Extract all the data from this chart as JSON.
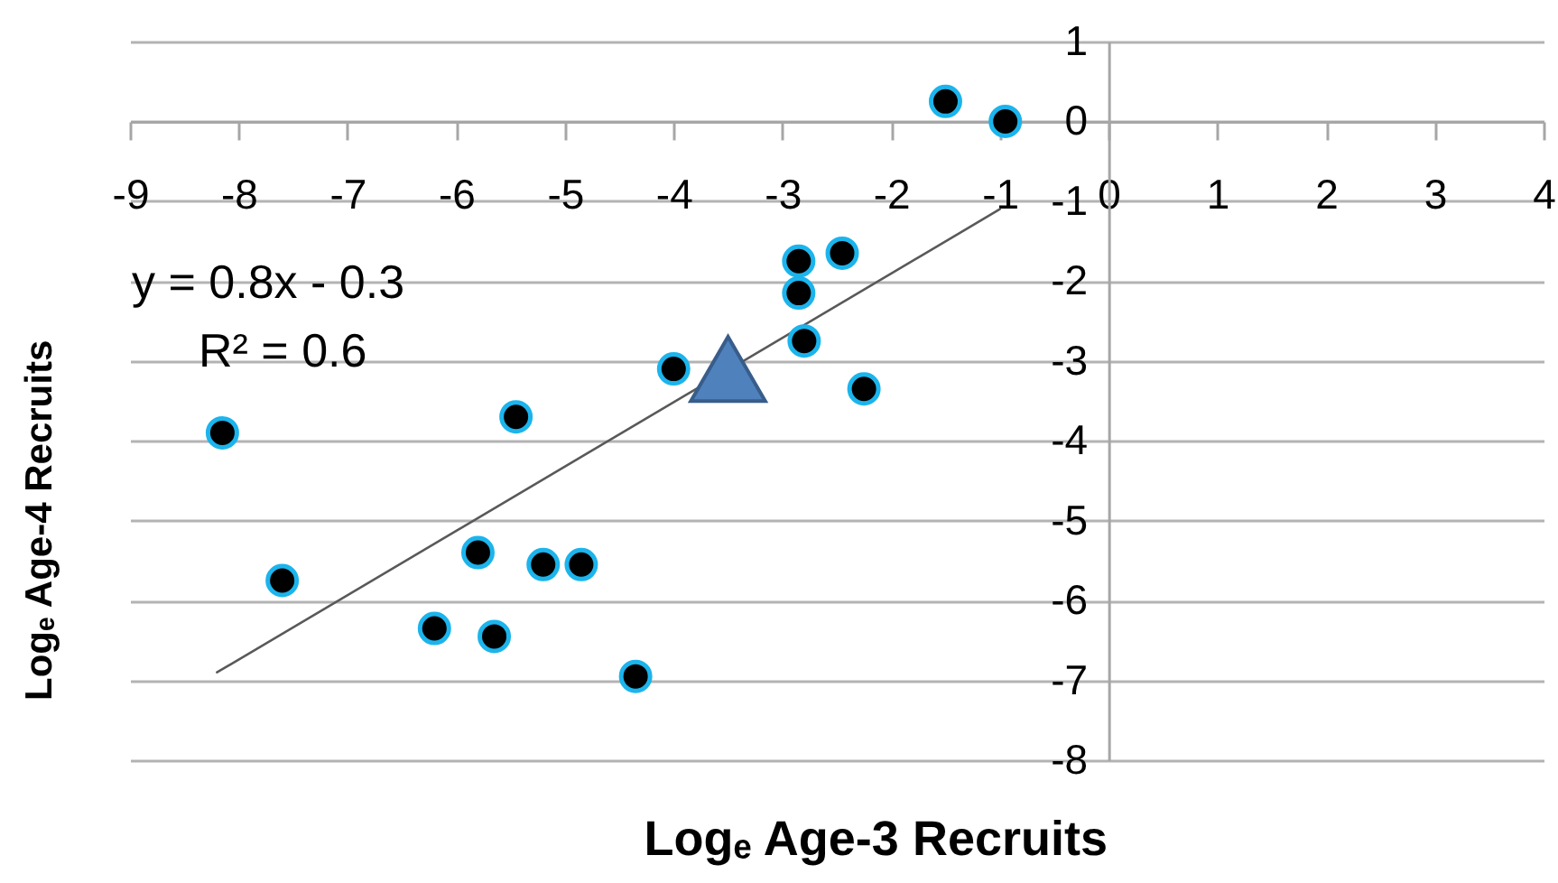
{
  "chart_data": {
    "type": "scatter",
    "xlabel": "Logₑ Age-3 Recruits",
    "ylabel": "Logₑ Age-4 Recruits",
    "annotations": [
      "y = 0.8x - 0.3",
      "R² = 0.6"
    ],
    "xlim": [
      -9,
      4
    ],
    "xticks": [
      -9,
      -8,
      -7,
      -6,
      -5,
      -4,
      -3,
      -2,
      -1,
      0,
      1,
      2,
      3,
      4
    ],
    "ylim": [
      -8,
      1
    ],
    "yticks": [
      -8,
      -7,
      -6,
      -5,
      -4,
      -3,
      -2,
      -1,
      0,
      1
    ],
    "grid": "y",
    "series": [
      {
        "type": "line",
        "color": "#595959",
        "marker": "none",
        "x": [
          -8.2,
          -1.0
        ],
        "values": [
          -6.9,
          -1.1
        ]
      },
      {
        "color": "#000000",
        "marker": "circle",
        "x": [
          -2.85,
          -2.85,
          -2.8,
          -4.0,
          -5.45,
          -8.15,
          -1.5,
          -0.95,
          -2.45,
          -2.25,
          -7.6,
          -5.8,
          -5.2,
          -4.85,
          -6.2,
          -5.65,
          -4.35
        ],
        "values": [
          -1.75,
          -2.15,
          -2.75,
          -3.1,
          -3.7,
          -3.9,
          0.25,
          0.0,
          -1.65,
          -3.35,
          -5.75,
          -5.4,
          -5.55,
          -5.55,
          -6.35,
          -6.45,
          -6.95
        ]
      },
      {
        "color": "#4f81bd",
        "marker": "triangle",
        "x": [
          -3.5
        ],
        "values": [
          -3.1
        ]
      }
    ]
  }
}
